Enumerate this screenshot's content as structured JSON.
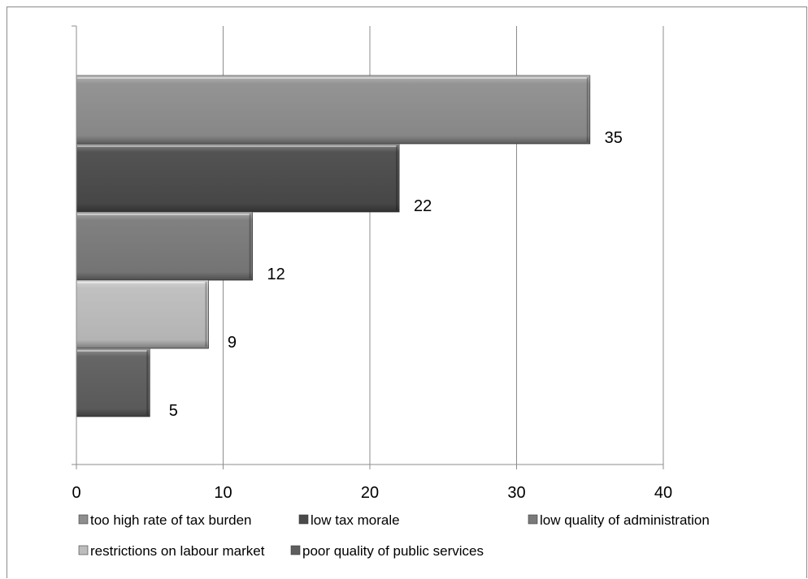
{
  "chart_data": {
    "type": "bar",
    "orientation": "horizontal",
    "categories": [
      "too high rate of tax burden",
      "low tax morale",
      "low quality of administration",
      "restrictions on labour market",
      "poor quality of public services"
    ],
    "values": [
      35,
      22,
      12,
      9,
      5
    ],
    "series": [
      {
        "name": "too high rate of tax burden",
        "value": 35,
        "color": "#8e8e8e"
      },
      {
        "name": "low tax morale",
        "value": 22,
        "color": "#4a4a4a"
      },
      {
        "name": "low quality of administration",
        "value": 12,
        "color": "#7a7a7a"
      },
      {
        "name": "restrictions on labour market",
        "value": 9,
        "color": "#bdbdbd"
      },
      {
        "name": "poor quality of public services",
        "value": 5,
        "color": "#5e5e5e"
      }
    ],
    "data_labels": [
      "35",
      "22",
      "12",
      "9",
      "5"
    ],
    "xlim": [
      0,
      40
    ],
    "x_ticks": [
      0,
      10,
      20,
      30,
      40
    ],
    "x_tick_labels": [
      "0",
      "10",
      "20",
      "30",
      "40"
    ],
    "grid": "vertical",
    "legend_position": "bottom",
    "title": "",
    "xlabel": "",
    "ylabel": ""
  }
}
